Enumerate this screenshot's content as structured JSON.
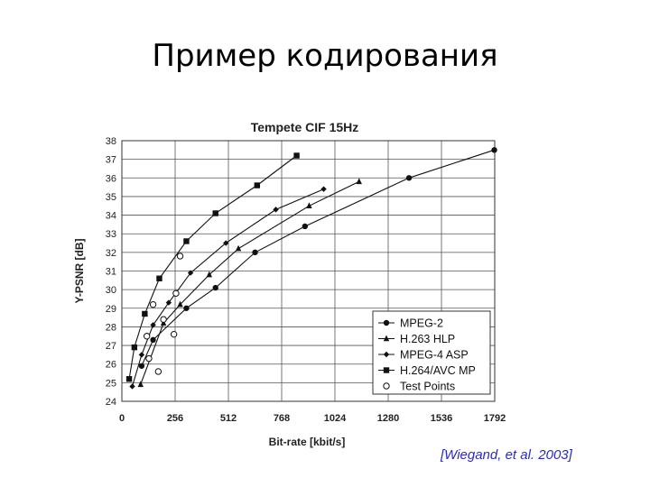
{
  "slide": {
    "title": "Пример кодирования",
    "citation": "[Wiegand, et al. 2003]"
  },
  "chart_data": {
    "type": "line",
    "title": "Tempete CIF 15Hz",
    "xlabel": "Bit-rate [kbit/s]",
    "ylabel": "Y-PSNR [dB]",
    "xlim": [
      0,
      1792
    ],
    "ylim": [
      24,
      38
    ],
    "xticks": [
      0,
      256,
      512,
      768,
      1024,
      1280,
      1536,
      1792
    ],
    "yticks": [
      24,
      25,
      26,
      27,
      28,
      29,
      30,
      31,
      32,
      33,
      34,
      35,
      36,
      37,
      38
    ],
    "grid": true,
    "legend_position": "bottom-right",
    "series": [
      {
        "name": "MPEG-2",
        "marker": "circle",
        "points": [
          [
            95,
            25.9
          ],
          [
            150,
            27.3
          ],
          [
            310,
            29.0
          ],
          [
            450,
            30.1
          ],
          [
            640,
            32.0
          ],
          [
            880,
            33.4
          ],
          [
            1380,
            36.0
          ],
          [
            1790,
            37.5
          ]
        ]
      },
      {
        "name": "H.263 HLP",
        "marker": "triangle",
        "points": [
          [
            90,
            24.9
          ],
          [
            200,
            28.2
          ],
          [
            280,
            29.2
          ],
          [
            420,
            30.8
          ],
          [
            560,
            32.2
          ],
          [
            900,
            34.5
          ],
          [
            1140,
            35.8
          ]
        ]
      },
      {
        "name": "MPEG-4 ASP",
        "marker": "diamond",
        "points": [
          [
            50,
            24.8
          ],
          [
            95,
            26.5
          ],
          [
            150,
            28.1
          ],
          [
            225,
            29.3
          ],
          [
            330,
            30.9
          ],
          [
            500,
            32.5
          ],
          [
            740,
            34.3
          ],
          [
            970,
            35.4
          ]
        ]
      },
      {
        "name": "H.264/AVC MP",
        "marker": "square",
        "points": [
          [
            35,
            25.2
          ],
          [
            60,
            26.9
          ],
          [
            110,
            28.7
          ],
          [
            180,
            30.6
          ],
          [
            310,
            32.6
          ],
          [
            450,
            34.1
          ],
          [
            650,
            35.6
          ],
          [
            840,
            37.2
          ]
        ]
      },
      {
        "name": "Test Points",
        "marker": "open-circle",
        "points": [
          [
            175,
            25.6
          ],
          [
            250,
            27.6
          ],
          [
            130,
            26.3
          ],
          [
            200,
            28.4
          ],
          [
            260,
            29.8
          ],
          [
            120,
            27.5
          ],
          [
            150,
            29.2
          ],
          [
            280,
            31.8
          ]
        ]
      }
    ]
  }
}
